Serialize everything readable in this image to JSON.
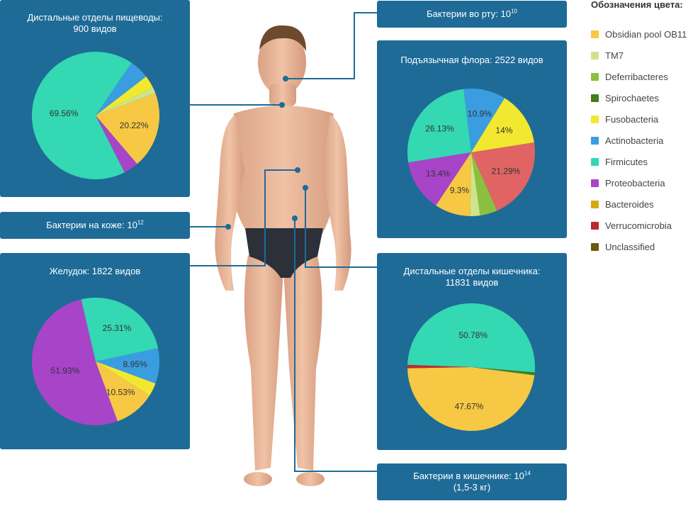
{
  "legend": {
    "title": "Обозначения цвета:",
    "items": [
      {
        "label": "Obsidian pool OB11",
        "color": "#f7c843"
      },
      {
        "label": "TM7",
        "color": "#cfe48a"
      },
      {
        "label": "Deferribacteres",
        "color": "#8cbf3f"
      },
      {
        "label": "Spirochaetes",
        "color": "#3f7f1e"
      },
      {
        "label": "Fusobacteria",
        "color": "#f2e830"
      },
      {
        "label": "Actinobacteria",
        "color": "#3a9de0"
      },
      {
        "label": "Firmicutes",
        "color": "#34d8b2"
      },
      {
        "label": "Proteobacteria",
        "color": "#a844c8"
      },
      {
        "label": "Bacteroides",
        "color": "#d6a912"
      },
      {
        "label": "Verrucomicrobia",
        "color": "#bf2a2a"
      },
      {
        "label": "Unclassified",
        "color": "#6b5a10"
      }
    ]
  },
  "info": {
    "mouth": {
      "text": "Бактерии во рту: 10",
      "exp": "10"
    },
    "skin": {
      "text": "Бактерии на коже: 10",
      "exp": "12"
    },
    "gut": {
      "text": "Бактерии в кишечнике: 10",
      "exp": "14",
      "line2": "(1,5-3 кг)"
    }
  },
  "chart_data": [
    {
      "type": "pie",
      "title": "Дистальные отделы пищеводы:",
      "subtitle": "900 видов",
      "slices": [
        {
          "name": "Firmicutes",
          "value": 69.56,
          "color": "#34d8b2",
          "label": "69.56%"
        },
        {
          "name": "Actinobacteria",
          "value": 5.2,
          "color": "#3a9de0",
          "label": ""
        },
        {
          "name": "Fusobacteria",
          "value": 3.4,
          "color": "#f2e830",
          "label": ""
        },
        {
          "name": "TM7",
          "value": 1.5,
          "color": "#cfe48a",
          "label": ""
        },
        {
          "name": "Obsidian pool OB11",
          "value": 20.22,
          "color": "#f7c843",
          "label": "20.22%"
        },
        {
          "name": "Proteobacteria",
          "value": 3.9,
          "color": "#a844c8",
          "label": ""
        }
      ]
    },
    {
      "type": "pie",
      "title": "Подъязычная флора: 2522 видов",
      "subtitle": "",
      "slices": [
        {
          "name": "Verrucomicrobia",
          "value": 21.29,
          "color": "#e06464",
          "label": "21.29%"
        },
        {
          "name": "Deferribacteres",
          "value": 4.5,
          "color": "#8cbf3f",
          "label": ""
        },
        {
          "name": "TM7",
          "value": 2.5,
          "color": "#cfe48a",
          "label": ""
        },
        {
          "name": "Obsidian pool OB11",
          "value": 9.3,
          "color": "#f7c843",
          "label": "9.3%"
        },
        {
          "name": "Proteobacteria",
          "value": 13.4,
          "color": "#a844c8",
          "label": "13.4%"
        },
        {
          "name": "Firmicutes",
          "value": 26.13,
          "color": "#34d8b2",
          "label": "26.13%"
        },
        {
          "name": "Actinobacteria",
          "value": 10.9,
          "color": "#3a9de0",
          "label": "10.9%"
        },
        {
          "name": "Fusobacteria",
          "value": 14,
          "color": "#f2e830",
          "label": "14%"
        }
      ]
    },
    {
      "type": "pie",
      "title": "Желудок: 1822 видов",
      "subtitle": "",
      "slices": [
        {
          "name": "Actinobacteria",
          "value": 8.95,
          "color": "#3a9de0",
          "label": "8.95%"
        },
        {
          "name": "Fusobacteria",
          "value": 3.28,
          "color": "#f2e830",
          "label": ""
        },
        {
          "name": "Obsidian pool OB11",
          "value": 10.53,
          "color": "#f7c843",
          "label": "10.53%"
        },
        {
          "name": "Proteobacteria",
          "value": 51.93,
          "color": "#a844c8",
          "label": "51.93%"
        },
        {
          "name": "Firmicutes",
          "value": 25.31,
          "color": "#34d8b2",
          "label": "25.31%"
        }
      ]
    },
    {
      "type": "pie",
      "title": "Дистальные отделы кишечника:",
      "subtitle": "11831 видов",
      "slices": [
        {
          "name": "Firmicutes",
          "value": 50.78,
          "color": "#34d8b2",
          "label": "50.78%"
        },
        {
          "name": "Spirochaetes",
          "value": 0.7,
          "color": "#3f7f1e",
          "label": ""
        },
        {
          "name": "Obsidian pool OB11",
          "value": 47.67,
          "color": "#f7c843",
          "label": "47.67%"
        },
        {
          "name": "Verrucomicrobia",
          "value": 0.85,
          "color": "#bf2a2a",
          "label": ""
        }
      ]
    }
  ]
}
